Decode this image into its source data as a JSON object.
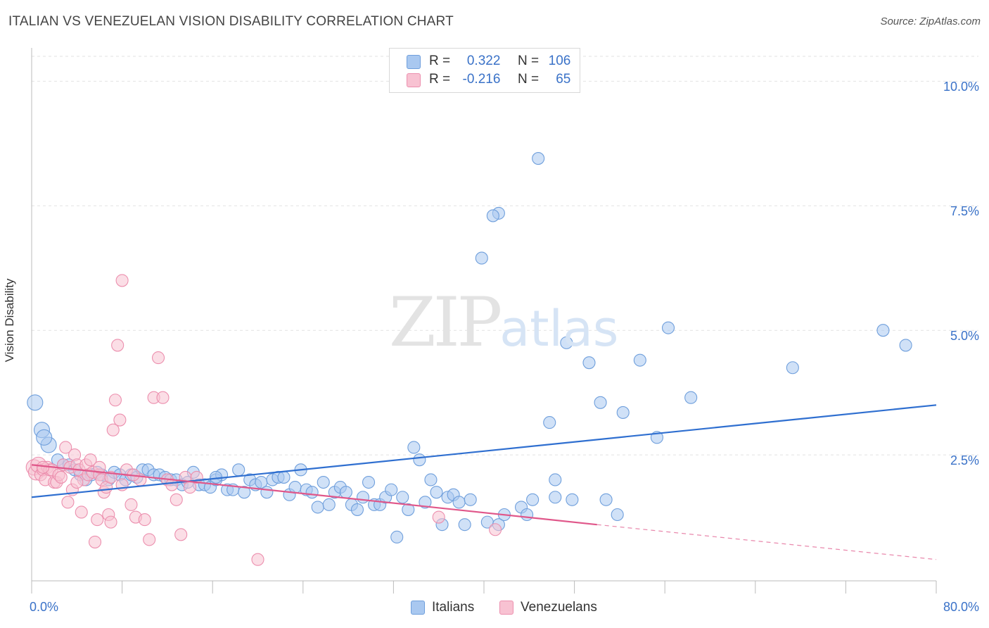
{
  "title": "ITALIAN VS VENEZUELAN VISION DISABILITY CORRELATION CHART",
  "source": "Source: ZipAtlas.com",
  "watermark": {
    "zip": "ZIP",
    "atlas": "atlas"
  },
  "legend_top": [
    {
      "r_label": "R =",
      "r_value": "0.322",
      "n_label": "N =",
      "n_value": "106",
      "color": "#a9c8f0",
      "border": "#6f9fdc"
    },
    {
      "r_label": "R =",
      "r_value": "-0.216",
      "n_label": "N =",
      "n_value": "65",
      "color": "#f8c2d2",
      "border": "#ec8fae"
    }
  ],
  "legend_bottom": [
    {
      "label": "Italians",
      "color": "#a9c8f0",
      "border": "#6f9fdc"
    },
    {
      "label": "Venezuelans",
      "color": "#f8c2d2",
      "border": "#ec8fae"
    }
  ],
  "chart_data": {
    "type": "scatter",
    "title": "ITALIAN VS VENEZUELAN VISION DISABILITY CORRELATION CHART",
    "xlabel": "",
    "ylabel": "Vision Disability",
    "xlim": [
      0,
      80
    ],
    "ylim": [
      0,
      10.5
    ],
    "x_tick_labels": [
      "0.0%",
      "80.0%"
    ],
    "y_ticks": [
      2.5,
      5.0,
      7.5,
      10.0
    ],
    "y_tick_labels": [
      "2.5%",
      "5.0%",
      "7.5%",
      "10.0%"
    ],
    "grid": "horizontal dashed",
    "legend_position": "top-center",
    "series": [
      {
        "name": "Italians",
        "color": "#6f9fdc",
        "fill": "#a9c8f0",
        "trend": {
          "x": [
            0,
            80
          ],
          "y": [
            1.65,
            3.5
          ],
          "color": "#2f6fd0"
        },
        "points": [
          [
            0.3,
            3.55
          ],
          [
            0.9,
            3.0
          ],
          [
            1.5,
            2.7
          ],
          [
            1.1,
            2.85
          ],
          [
            2.3,
            2.4
          ],
          [
            2.8,
            2.3
          ],
          [
            3.3,
            2.3
          ],
          [
            3.8,
            2.2
          ],
          [
            4.3,
            2.1
          ],
          [
            4.8,
            2.0
          ],
          [
            5.3,
            2.1
          ],
          [
            5.8,
            2.15
          ],
          [
            6.2,
            2.1
          ],
          [
            6.8,
            2.0
          ],
          [
            7.3,
            2.15
          ],
          [
            7.8,
            2.1
          ],
          [
            8.3,
            2.0
          ],
          [
            8.8,
            2.1
          ],
          [
            9.3,
            2.05
          ],
          [
            9.8,
            2.2
          ],
          [
            10.3,
            2.2
          ],
          [
            10.8,
            2.1
          ],
          [
            11.3,
            2.1
          ],
          [
            11.8,
            2.05
          ],
          [
            12.3,
            2.0
          ],
          [
            12.8,
            2.0
          ],
          [
            13.3,
            1.9
          ],
          [
            13.8,
            1.95
          ],
          [
            14.3,
            2.15
          ],
          [
            14.8,
            1.9
          ],
          [
            15.3,
            1.9
          ],
          [
            15.8,
            1.85
          ],
          [
            16.3,
            2.0
          ],
          [
            16.8,
            2.1
          ],
          [
            17.3,
            1.8
          ],
          [
            17.8,
            1.8
          ],
          [
            18.3,
            2.2
          ],
          [
            18.8,
            1.75
          ],
          [
            19.3,
            2.0
          ],
          [
            19.8,
            1.9
          ],
          [
            20.3,
            1.95
          ],
          [
            20.8,
            1.75
          ],
          [
            21.3,
            2.0
          ],
          [
            21.8,
            2.05
          ],
          [
            22.3,
            2.05
          ],
          [
            22.8,
            1.7
          ],
          [
            23.3,
            1.85
          ],
          [
            23.8,
            2.2
          ],
          [
            24.3,
            1.8
          ],
          [
            24.8,
            1.75
          ],
          [
            25.3,
            1.45
          ],
          [
            25.8,
            1.95
          ],
          [
            26.3,
            1.5
          ],
          [
            26.8,
            1.75
          ],
          [
            27.3,
            1.85
          ],
          [
            27.8,
            1.75
          ],
          [
            28.3,
            1.5
          ],
          [
            28.8,
            1.4
          ],
          [
            29.3,
            1.65
          ],
          [
            29.8,
            1.95
          ],
          [
            30.3,
            1.5
          ],
          [
            30.8,
            1.5
          ],
          [
            31.3,
            1.65
          ],
          [
            31.8,
            1.8
          ],
          [
            32.3,
            0.85
          ],
          [
            32.8,
            1.65
          ],
          [
            33.3,
            1.4
          ],
          [
            33.8,
            2.65
          ],
          [
            34.3,
            2.4
          ],
          [
            34.8,
            1.55
          ],
          [
            35.3,
            2.0
          ],
          [
            35.8,
            1.75
          ],
          [
            36.3,
            1.1
          ],
          [
            36.8,
            1.65
          ],
          [
            37.3,
            1.7
          ],
          [
            37.8,
            1.55
          ],
          [
            38.3,
            1.1
          ],
          [
            38.8,
            1.6
          ],
          [
            39.8,
            6.45
          ],
          [
            40.3,
            1.15
          ],
          [
            41.3,
            1.1
          ],
          [
            41.8,
            1.3
          ],
          [
            43.3,
            1.45
          ],
          [
            43.8,
            1.3
          ],
          [
            44.3,
            1.6
          ],
          [
            44.8,
            8.45
          ],
          [
            46.3,
            2.0
          ],
          [
            46.3,
            1.65
          ],
          [
            47.3,
            4.75
          ],
          [
            47.8,
            1.6
          ],
          [
            49.3,
            4.35
          ],
          [
            50.3,
            3.55
          ],
          [
            50.8,
            1.6
          ],
          [
            51.8,
            1.3
          ],
          [
            52.3,
            3.35
          ],
          [
            53.8,
            4.4
          ],
          [
            55.3,
            2.85
          ],
          [
            56.3,
            5.05
          ],
          [
            58.3,
            3.65
          ],
          [
            67.3,
            4.25
          ],
          [
            75.3,
            5.0
          ],
          [
            77.3,
            4.7
          ],
          [
            41.3,
            7.35
          ],
          [
            45.8,
            3.15
          ],
          [
            40.8,
            7.3
          ],
          [
            16.3,
            2.05
          ]
        ]
      },
      {
        "name": "Venezuelans",
        "color": "#ec8fae",
        "fill": "#f8c2d2",
        "trend": {
          "x": [
            0,
            50
          ],
          "y": [
            2.3,
            1.1
          ],
          "dashed_to": [
            80,
            0.4
          ],
          "color": "#e0578a"
        },
        "points": [
          [
            0.2,
            2.25
          ],
          [
            0.4,
            2.15
          ],
          [
            0.6,
            2.3
          ],
          [
            0.8,
            2.1
          ],
          [
            1.0,
            2.2
          ],
          [
            1.2,
            2.0
          ],
          [
            1.4,
            2.25
          ],
          [
            1.6,
            2.2
          ],
          [
            1.8,
            2.2
          ],
          [
            2.0,
            1.95
          ],
          [
            2.2,
            1.95
          ],
          [
            2.4,
            2.1
          ],
          [
            2.6,
            2.05
          ],
          [
            2.8,
            2.3
          ],
          [
            3.0,
            2.65
          ],
          [
            3.2,
            1.55
          ],
          [
            3.4,
            2.25
          ],
          [
            3.6,
            1.8
          ],
          [
            3.8,
            2.5
          ],
          [
            4.0,
            2.3
          ],
          [
            4.2,
            2.2
          ],
          [
            4.4,
            1.35
          ],
          [
            4.6,
            2.0
          ],
          [
            4.8,
            2.3
          ],
          [
            5.0,
            2.1
          ],
          [
            5.2,
            2.4
          ],
          [
            5.4,
            2.15
          ],
          [
            5.6,
            0.75
          ],
          [
            5.8,
            1.2
          ],
          [
            6.0,
            2.1
          ],
          [
            6.2,
            2.0
          ],
          [
            6.4,
            1.75
          ],
          [
            6.6,
            1.85
          ],
          [
            6.8,
            1.3
          ],
          [
            7.0,
            1.15
          ],
          [
            7.2,
            3.0
          ],
          [
            7.4,
            3.6
          ],
          [
            7.6,
            4.7
          ],
          [
            7.8,
            3.2
          ],
          [
            8.0,
            6.0
          ],
          [
            8.4,
            2.2
          ],
          [
            8.8,
            1.5
          ],
          [
            9.2,
            1.25
          ],
          [
            9.6,
            2.0
          ],
          [
            10.0,
            1.2
          ],
          [
            10.4,
            0.8
          ],
          [
            10.8,
            3.65
          ],
          [
            11.2,
            4.45
          ],
          [
            11.6,
            3.65
          ],
          [
            12.0,
            2.0
          ],
          [
            12.4,
            1.9
          ],
          [
            12.8,
            1.6
          ],
          [
            13.2,
            0.9
          ],
          [
            13.6,
            2.05
          ],
          [
            14.0,
            1.85
          ],
          [
            1.0,
            2.25
          ],
          [
            4.0,
            1.95
          ],
          [
            6.0,
            2.25
          ],
          [
            7.0,
            2.05
          ],
          [
            8.0,
            1.9
          ],
          [
            9.0,
            2.1
          ],
          [
            20.0,
            0.4
          ],
          [
            36.0,
            1.25
          ],
          [
            41.0,
            1.0
          ],
          [
            14.6,
            2.05
          ]
        ]
      }
    ]
  }
}
